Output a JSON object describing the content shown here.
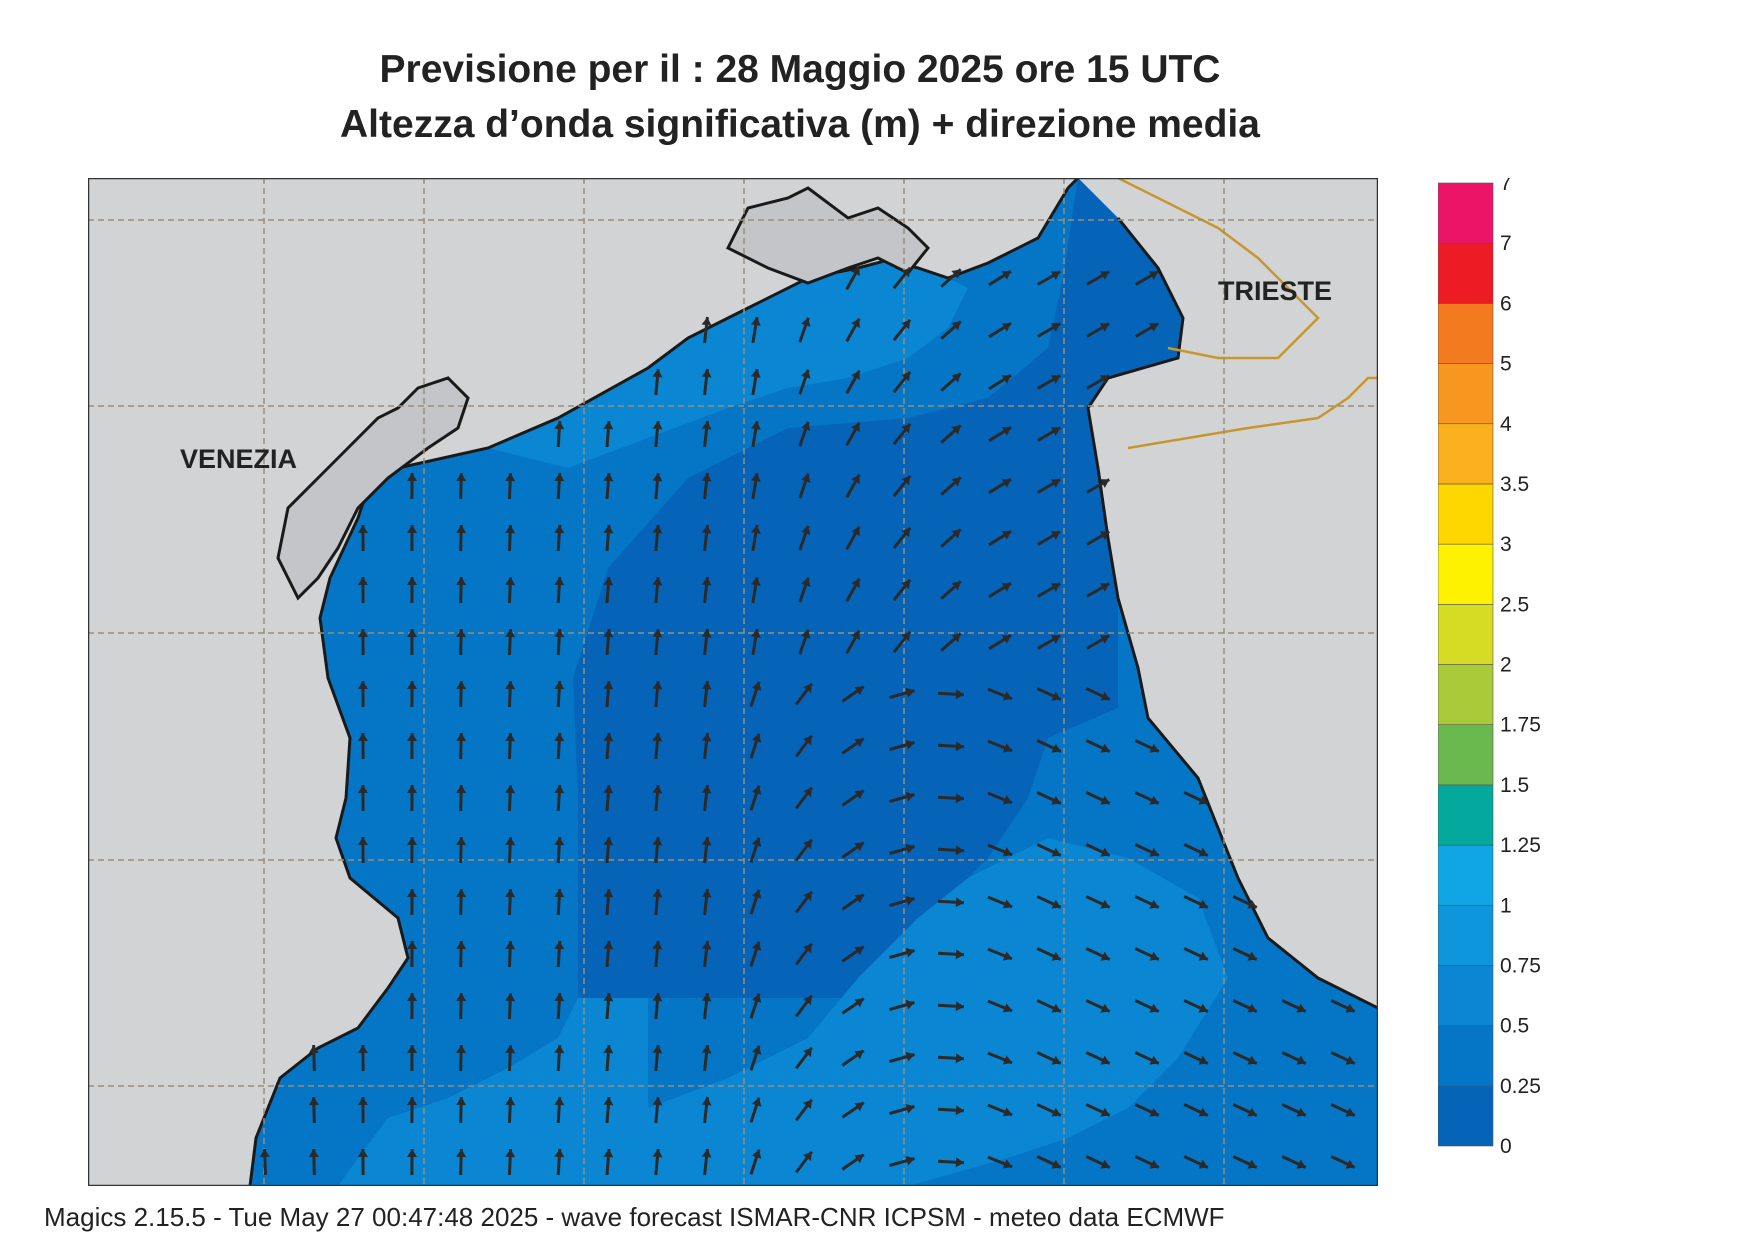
{
  "header": {
    "title_line1": "Previsione per il  :  28   Maggio  2025   ore 15 UTC",
    "title_line2": "Altezza d’onda significativa (m) + direzione media"
  },
  "map": {
    "cities": [
      {
        "name": "VENEZIA"
      },
      {
        "name": "TRIESTE"
      }
    ],
    "colors": {
      "land": "#d2d3d5",
      "sea_0": "#0664b8",
      "sea_025": "#0575c6",
      "sea_05": "#0a86d2",
      "coast": "#1a1a1a",
      "border": "#c8962e",
      "grid": "#9a8e78",
      "arrow": "#2a2a2a"
    }
  },
  "legend": {
    "items": [
      {
        "label": "0",
        "color": "#0664b8"
      },
      {
        "label": "0.25",
        "color": "#0575c6"
      },
      {
        "label": "0.5",
        "color": "#0a86d2"
      },
      {
        "label": "0.75",
        "color": "#0e96dc"
      },
      {
        "label": "1",
        "color": "#10a6e6"
      },
      {
        "label": "1.25",
        "color": "#05a89d"
      },
      {
        "label": "1.5",
        "color": "#6ab94e"
      },
      {
        "label": "1.75",
        "color": "#a9cb3a"
      },
      {
        "label": "2",
        "color": "#d6dc24"
      },
      {
        "label": "2.5",
        "color": "#fff200"
      },
      {
        "label": "3",
        "color": "#ffd700"
      },
      {
        "label": "3.5",
        "color": "#fbb11d"
      },
      {
        "label": "4",
        "color": "#f8971f"
      },
      {
        "label": "5",
        "color": "#f47a20"
      },
      {
        "label": "6",
        "color": "#ed1c24"
      },
      {
        "label": "7",
        "color": "#ec1467"
      }
    ]
  },
  "footer": {
    "text": "Magics 2.15.5 - Tue May 27 00:47:48 2025 - wave forecast  ISMAR-CNR  ICPSM - meteo data   ECMWF"
  }
}
